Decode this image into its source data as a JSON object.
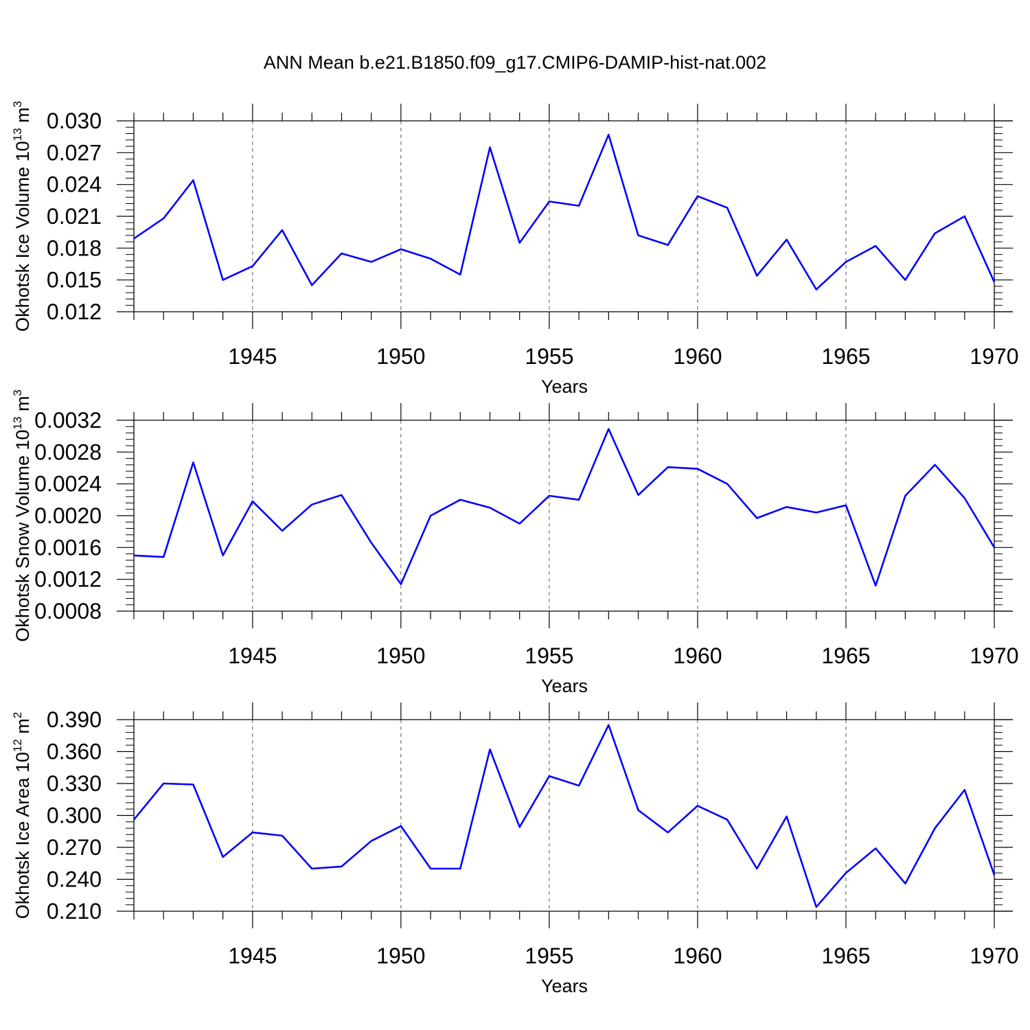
{
  "title": "ANN Mean b.e21.B1850.f09_g17.CMIP6-DAMIP-hist-nat.002",
  "colors": {
    "line": "#0000ff",
    "axis": "#000000",
    "grid": "#555555"
  },
  "chart_data": [
    {
      "type": "line",
      "ylabel": "Okhotsk Ice Volume",
      "yunit_base": "10",
      "yunit_exp": "13",
      "yunit_tail": " m",
      "yunit_tail_exp": "3",
      "xlabel": "Years",
      "xlim": [
        1941,
        1970
      ],
      "ylim": [
        0.012,
        0.03
      ],
      "yticks": [
        "0.012",
        "0.015",
        "0.018",
        "0.021",
        "0.024",
        "0.027",
        "0.030"
      ],
      "xticks": [
        "1945",
        "1950",
        "1955",
        "1960",
        "1965",
        "1970"
      ],
      "x": [
        1941,
        1942,
        1943,
        1944,
        1945,
        1946,
        1947,
        1948,
        1949,
        1950,
        1951,
        1952,
        1953,
        1954,
        1955,
        1956,
        1957,
        1958,
        1959,
        1960,
        1961,
        1962,
        1963,
        1964,
        1965,
        1966,
        1967,
        1968,
        1969,
        1970
      ],
      "values": [
        0.0189,
        0.0208,
        0.0244,
        0.015,
        0.0163,
        0.0197,
        0.0145,
        0.0175,
        0.0167,
        0.0179,
        0.017,
        0.0155,
        0.0275,
        0.0185,
        0.0224,
        0.022,
        0.0287,
        0.0192,
        0.0183,
        0.0229,
        0.0218,
        0.0154,
        0.0188,
        0.0141,
        0.0167,
        0.0182,
        0.015,
        0.0194,
        0.021,
        0.0148
      ]
    },
    {
      "type": "line",
      "ylabel": "Okhotsk Snow Volume",
      "yunit_base": "10",
      "yunit_exp": "13",
      "yunit_tail": " m",
      "yunit_tail_exp": "3",
      "xlabel": "Years",
      "xlim": [
        1941,
        1970
      ],
      "ylim": [
        0.0008,
        0.0032
      ],
      "yticks": [
        "0.0008",
        "0.0012",
        "0.0016",
        "0.0020",
        "0.0024",
        "0.0028",
        "0.0032"
      ],
      "xticks": [
        "1945",
        "1950",
        "1955",
        "1960",
        "1965",
        "1970"
      ],
      "x": [
        1941,
        1942,
        1943,
        1944,
        1945,
        1946,
        1947,
        1948,
        1949,
        1950,
        1951,
        1952,
        1953,
        1954,
        1955,
        1956,
        1957,
        1958,
        1959,
        1960,
        1961,
        1962,
        1963,
        1964,
        1965,
        1966,
        1967,
        1968,
        1969,
        1970
      ],
      "values": [
        0.0015,
        0.00148,
        0.00267,
        0.0015,
        0.00218,
        0.00181,
        0.00214,
        0.00226,
        0.00166,
        0.00114,
        0.002,
        0.0022,
        0.0021,
        0.0019,
        0.00225,
        0.0022,
        0.00309,
        0.00226,
        0.00261,
        0.00259,
        0.0024,
        0.00197,
        0.00211,
        0.00204,
        0.00213,
        0.00112,
        0.00225,
        0.00264,
        0.00222,
        0.0016
      ]
    },
    {
      "type": "line",
      "ylabel": "Okhotsk Ice Area",
      "yunit_base": "10",
      "yunit_exp": "12",
      "yunit_tail": " m",
      "yunit_tail_exp": "2",
      "xlabel": "Years",
      "xlim": [
        1941,
        1970
      ],
      "ylim": [
        0.21,
        0.39
      ],
      "yticks": [
        "0.210",
        "0.240",
        "0.270",
        "0.300",
        "0.330",
        "0.360",
        "0.390"
      ],
      "xticks": [
        "1945",
        "1950",
        "1955",
        "1960",
        "1965",
        "1970"
      ],
      "x": [
        1941,
        1942,
        1943,
        1944,
        1945,
        1946,
        1947,
        1948,
        1949,
        1950,
        1951,
        1952,
        1953,
        1954,
        1955,
        1956,
        1957,
        1958,
        1959,
        1960,
        1961,
        1962,
        1963,
        1964,
        1965,
        1966,
        1967,
        1968,
        1969,
        1970
      ],
      "values": [
        0.296,
        0.33,
        0.329,
        0.261,
        0.284,
        0.281,
        0.25,
        0.252,
        0.276,
        0.29,
        0.25,
        0.25,
        0.362,
        0.289,
        0.337,
        0.328,
        0.385,
        0.305,
        0.284,
        0.309,
        0.296,
        0.25,
        0.299,
        0.214,
        0.246,
        0.269,
        0.236,
        0.288,
        0.324,
        0.244
      ]
    }
  ]
}
